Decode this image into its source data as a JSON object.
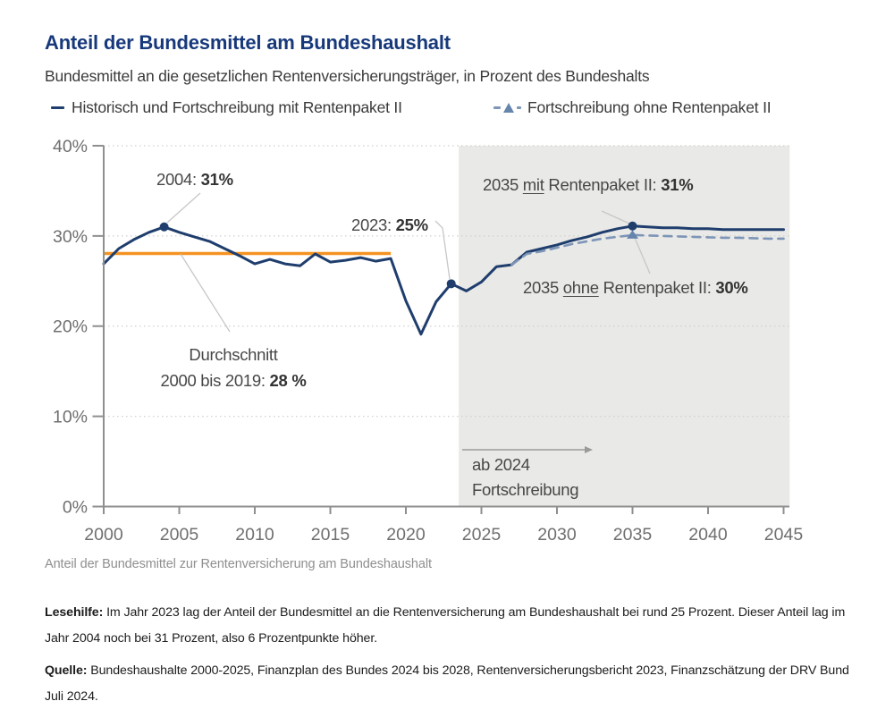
{
  "page": {
    "title": "Anteil der Bundesmittel am Bundeshaushalt",
    "subtitle": "Bundesmittel an die gesetzlichen Rentenversicherungsträger, in Prozent des Bundeshalts",
    "caption": "Anteil der Bundesmittel zur Rentenversicherung am Bundeshaushalt",
    "lesehilfe_label": "Lesehilfe:",
    "lesehilfe_text": " Im Jahr 2023 lag der Anteil der Bundesmittel an die Rentenversicherung am Bundeshaushalt bei rund 25 Prozent. Dieser Anteil lag im Jahr 2004 noch bei 31 Prozent, also 6 Prozentpunkte höher.",
    "quelle_label": "Quelle:",
    "quelle_text": " Bundeshaushalte 2000-2025, Finanzplan des Bundes 2024 bis 2028, Rentenversicherungsbericht 2023, Finanzschätzung der DRV Bund Juli 2024."
  },
  "legend": {
    "item1": "Historisch und Fortschreibung mit Rentenpaket II",
    "item2": "Fortschreibung ohne Rentenpaket II"
  },
  "annotations": {
    "a2004": {
      "prefix": "2004: ",
      "value": "31%"
    },
    "a2023": {
      "prefix": "2023: ",
      "value": "25%"
    },
    "mit": {
      "pre": "2035 ",
      "u": "mit",
      "mid": " Rentenpaket II: ",
      "value": "31%"
    },
    "ohne": {
      "pre": "2035 ",
      "u": "ohne",
      "mid": " Rentenpaket II: ",
      "value": "30%"
    },
    "avg": {
      "line1": "Durchschnitt",
      "line2": "2000 bis 2019: ",
      "value": "28 %"
    },
    "ab2024": {
      "line1": "ab 2024",
      "line2": "Fortschreibung"
    }
  },
  "colors": {
    "title_blue": "#17397b",
    "line_navy": "#1f3e6d",
    "dashed_blue": "#7e95b8",
    "triangle_blue": "#6585ad",
    "average_orange": "#f59322",
    "projection_gray": "#e9e9e7",
    "axis_gray": "#8f8f8f",
    "tick_label_gray": "#6f6f6f"
  },
  "chart_data": {
    "type": "line",
    "title": "Anteil der Bundesmittel am Bundeshaushalt",
    "xlim": [
      2000,
      2045
    ],
    "ylim": [
      0,
      40
    ],
    "grid": "horizontal-dotted",
    "legend_position": "top",
    "x_ticks": [
      {
        "value": 2000,
        "label": "2000"
      },
      {
        "value": 2005,
        "label": "2005"
      },
      {
        "value": 2010,
        "label": "2010"
      },
      {
        "value": 2015,
        "label": "2015"
      },
      {
        "value": 2020,
        "label": "2020"
      },
      {
        "value": 2025,
        "label": "2025"
      },
      {
        "value": 2030,
        "label": "2030"
      },
      {
        "value": 2035,
        "label": "2035"
      },
      {
        "value": 2040,
        "label": "2040"
      },
      {
        "value": 2045,
        "label": "2045"
      }
    ],
    "y_ticks": [
      {
        "value": 0,
        "label": "0%"
      },
      {
        "value": 10,
        "label": "10%"
      },
      {
        "value": 20,
        "label": "20%"
      },
      {
        "value": 30,
        "label": "30%"
      },
      {
        "value": 40,
        "label": "40%"
      }
    ],
    "series": [
      {
        "name": "Historisch und Fortschreibung mit Rentenpaket II",
        "style": "solid",
        "color": "#1f3e6d",
        "points": [
          [
            2000,
            26.9
          ],
          [
            2001,
            28.6
          ],
          [
            2002,
            29.6
          ],
          [
            2003,
            30.4
          ],
          [
            2004,
            31.0
          ],
          [
            2005,
            30.4
          ],
          [
            2006,
            29.9
          ],
          [
            2007,
            29.4
          ],
          [
            2008,
            28.6
          ],
          [
            2009,
            27.8
          ],
          [
            2010,
            26.9
          ],
          [
            2011,
            27.4
          ],
          [
            2012,
            26.9
          ],
          [
            2013,
            26.7
          ],
          [
            2014,
            28.0
          ],
          [
            2015,
            27.1
          ],
          [
            2016,
            27.3
          ],
          [
            2017,
            27.6
          ],
          [
            2018,
            27.2
          ],
          [
            2019,
            27.5
          ],
          [
            2020,
            22.8
          ],
          [
            2021,
            19.1
          ],
          [
            2022,
            22.7
          ],
          [
            2023,
            24.7
          ],
          [
            2024,
            23.9
          ],
          [
            2025,
            24.9
          ],
          [
            2026,
            26.6
          ],
          [
            2027,
            26.8
          ],
          [
            2028,
            28.2
          ],
          [
            2029,
            28.6
          ],
          [
            2030,
            29.0
          ],
          [
            2031,
            29.5
          ],
          [
            2032,
            29.9
          ],
          [
            2033,
            30.4
          ],
          [
            2034,
            30.8
          ],
          [
            2035,
            31.1
          ],
          [
            2036,
            31.0
          ],
          [
            2037,
            30.9
          ],
          [
            2038,
            30.9
          ],
          [
            2039,
            30.8
          ],
          [
            2040,
            30.8
          ],
          [
            2041,
            30.7
          ],
          [
            2042,
            30.7
          ],
          [
            2043,
            30.7
          ],
          [
            2044,
            30.7
          ],
          [
            2045,
            30.7
          ]
        ]
      },
      {
        "name": "Fortschreibung ohne Rentenpaket II",
        "style": "dashed",
        "color": "#7e95b8",
        "points": [
          [
            2027,
            26.8
          ],
          [
            2028,
            28.0
          ],
          [
            2029,
            28.3
          ],
          [
            2030,
            28.7
          ],
          [
            2031,
            29.1
          ],
          [
            2032,
            29.4
          ],
          [
            2033,
            29.7
          ],
          [
            2034,
            29.9
          ],
          [
            2035,
            30.1
          ],
          [
            2036,
            30.05
          ],
          [
            2037,
            30.0
          ],
          [
            2038,
            29.95
          ],
          [
            2039,
            29.9
          ],
          [
            2040,
            29.85
          ],
          [
            2041,
            29.8
          ],
          [
            2042,
            29.8
          ],
          [
            2043,
            29.75
          ],
          [
            2044,
            29.7
          ],
          [
            2045,
            29.7
          ]
        ]
      }
    ],
    "markers": [
      {
        "series": 0,
        "year": 2004,
        "value": 31.0,
        "shape": "circle",
        "label": "2004: 31%"
      },
      {
        "series": 0,
        "year": 2023,
        "value": 24.7,
        "shape": "circle",
        "label": "2023: 25%"
      },
      {
        "series": 0,
        "year": 2035,
        "value": 31.1,
        "shape": "circle",
        "label": "2035 mit Rentenpaket II: 31%"
      },
      {
        "series": 1,
        "year": 2035,
        "value": 30.1,
        "shape": "triangle",
        "label": "2035 ohne Rentenpaket II: 30%"
      }
    ],
    "average_line": {
      "value": 28,
      "from": 2000,
      "to": 2019,
      "color": "#f59322",
      "label": "Durchschnitt 2000 bis 2019: 28 %"
    },
    "projection_region": {
      "from": 2023.5,
      "to": 2045.4,
      "color": "#e9e9e7",
      "label": "ab 2024 Fortschreibung"
    }
  }
}
